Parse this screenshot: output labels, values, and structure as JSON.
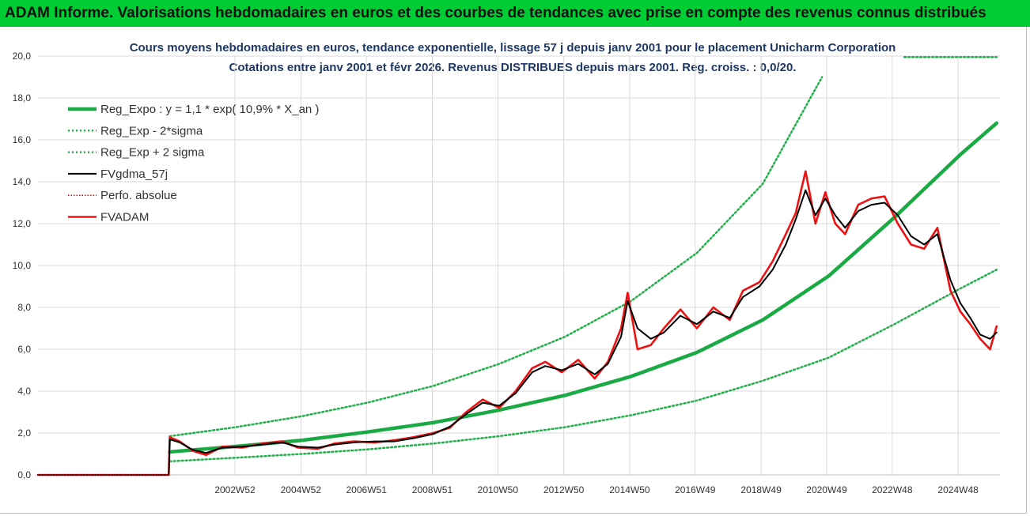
{
  "header": {
    "title": "ADAM Informe. Valorisations hebdomadaires en euros et des courbes de tendances avec prise en compte des revenus connus distribués"
  },
  "colors": {
    "header_bg": "#00cc33",
    "reg_expo": "#1aaa44",
    "sigma": "#22b04a",
    "fvgdma": "#000000",
    "perfo": "#dd0000",
    "fvadam": "#ee1111",
    "grid": "#d9d9d9"
  },
  "chart_data": {
    "type": "line",
    "title": "Cours moyens hebdomadaires en euros, tendance exponentielle, lissage 57 j depuis janv 2001 pour le placement Unicharm Corporation",
    "subtitle": "Cotations entre janv 2001 et févr 2026. Revenus DISTRIBUES depuis mars 2001. Reg. croiss. : 0,0/20.",
    "xlabel": "",
    "ylabel": "",
    "ylim": [
      0,
      20
    ],
    "xlim": [
      1997.0,
      2026.2
    ],
    "grid": true,
    "legend_position": "top-left",
    "yticks": [
      "0,0",
      "2,0",
      "4,0",
      "6,0",
      "8,0",
      "10,0",
      "12,0",
      "14,0",
      "16,0",
      "18,0",
      "20,0"
    ],
    "xticks": [
      {
        "label": "2002W52",
        "x": 2002.98
      },
      {
        "label": "2004W52",
        "x": 2004.98
      },
      {
        "label": "2006W51",
        "x": 2006.97
      },
      {
        "label": "2008W51",
        "x": 2008.97
      },
      {
        "label": "2010W50",
        "x": 2010.96
      },
      {
        "label": "2012W50",
        "x": 2012.96
      },
      {
        "label": "2014W50",
        "x": 2014.96
      },
      {
        "label": "2016W49",
        "x": 2016.95
      },
      {
        "label": "2018W49",
        "x": 2018.95
      },
      {
        "label": "2020W49",
        "x": 2020.94
      },
      {
        "label": "2022W48",
        "x": 2022.93
      },
      {
        "label": "2024W48",
        "x": 2024.93
      }
    ],
    "series": [
      {
        "name": "Reg_Expo : y = 1,1 * exp( 10,9% *  X_an )",
        "key": "reg_expo",
        "x": [
          2001.0,
          2003.0,
          2005.0,
          2007.0,
          2009.0,
          2011.0,
          2013.0,
          2015.0,
          2017.0,
          2019.0,
          2021.0,
          2023.0,
          2025.0,
          2026.1
        ],
        "values": [
          1.1,
          1.36,
          1.65,
          2.05,
          2.5,
          3.1,
          3.8,
          4.7,
          5.85,
          7.4,
          9.5,
          12.3,
          15.3,
          16.8
        ]
      },
      {
        "name": "Reg_Exp - 2*sigma",
        "key": "minus2sigma",
        "x": [
          2001.0,
          2003.0,
          2005.0,
          2007.0,
          2009.0,
          2011.0,
          2013.0,
          2015.0,
          2017.0,
          2019.0,
          2021.0,
          2023.0,
          2025.0,
          2026.1
        ],
        "values": [
          0.65,
          0.82,
          1.0,
          1.22,
          1.5,
          1.85,
          2.28,
          2.85,
          3.55,
          4.5,
          5.6,
          7.2,
          8.9,
          9.8
        ]
      },
      {
        "name": "Reg_Exp + 2 sigma",
        "key": "plus2sigma",
        "x": [
          2001.0,
          2003.0,
          2005.0,
          2007.0,
          2009.0,
          2011.0,
          2013.0,
          2015.0,
          2017.0,
          2019.0,
          2020.8
        ],
        "values": [
          1.85,
          2.28,
          2.8,
          3.45,
          4.25,
          5.3,
          6.6,
          8.3,
          10.6,
          13.9,
          19.0
        ],
        "x2": [
          2023.3,
          2026.1
        ],
        "values2": [
          19.95,
          19.95
        ]
      },
      {
        "name": "FVgdma_57j",
        "key": "fvgdma",
        "x": [
          1997.0,
          2000.97,
          2001.0,
          2001.3,
          2001.7,
          2002.1,
          2002.6,
          2003.2,
          2003.8,
          2004.4,
          2004.9,
          2005.5,
          2006.0,
          2006.6,
          2007.2,
          2007.8,
          2008.4,
          2009.0,
          2009.5,
          2010.0,
          2010.5,
          2011.0,
          2011.5,
          2012.0,
          2012.4,
          2012.9,
          2013.4,
          2013.9,
          2014.3,
          2014.7,
          2014.9,
          2015.2,
          2015.6,
          2016.0,
          2016.5,
          2017.0,
          2017.5,
          2018.0,
          2018.4,
          2018.9,
          2019.3,
          2019.7,
          2020.0,
          2020.3,
          2020.6,
          2020.9,
          2021.2,
          2021.5,
          2021.9,
          2022.3,
          2022.7,
          2023.1,
          2023.5,
          2023.9,
          2024.3,
          2024.7,
          2025.0,
          2025.3,
          2025.6,
          2025.9,
          2026.1
        ],
        "values": [
          0.0,
          0.0,
          1.7,
          1.55,
          1.2,
          1.05,
          1.3,
          1.35,
          1.45,
          1.55,
          1.35,
          1.3,
          1.45,
          1.55,
          1.6,
          1.6,
          1.75,
          1.95,
          2.3,
          2.9,
          3.45,
          3.3,
          3.9,
          4.9,
          5.2,
          5.0,
          5.3,
          4.8,
          5.3,
          6.6,
          8.3,
          7.0,
          6.5,
          6.8,
          7.6,
          7.2,
          7.8,
          7.5,
          8.5,
          9.0,
          9.8,
          11.0,
          12.2,
          13.6,
          12.4,
          13.2,
          12.4,
          11.8,
          12.6,
          12.9,
          13.0,
          12.4,
          11.4,
          11.0,
          11.5,
          9.3,
          8.2,
          7.5,
          6.7,
          6.5,
          6.8
        ]
      },
      {
        "name": "Perfo. absolue",
        "key": "perfo",
        "x": [
          1997.0,
          2000.97
        ],
        "values": [
          0.0,
          0.0
        ]
      },
      {
        "name": "FVADAM",
        "key": "fvadam",
        "x": [
          1997.0,
          2000.97,
          2001.0,
          2001.3,
          2001.7,
          2002.1,
          2002.6,
          2003.2,
          2003.8,
          2004.4,
          2004.9,
          2005.5,
          2006.0,
          2006.6,
          2007.2,
          2007.8,
          2008.4,
          2009.0,
          2009.5,
          2010.0,
          2010.5,
          2011.0,
          2011.5,
          2012.0,
          2012.4,
          2012.9,
          2013.4,
          2013.9,
          2014.3,
          2014.7,
          2014.9,
          2015.2,
          2015.6,
          2016.0,
          2016.5,
          2017.0,
          2017.5,
          2018.0,
          2018.4,
          2018.9,
          2019.3,
          2019.7,
          2020.0,
          2020.3,
          2020.6,
          2020.9,
          2021.2,
          2021.5,
          2021.9,
          2022.3,
          2022.7,
          2023.1,
          2023.5,
          2023.9,
          2024.3,
          2024.7,
          2025.0,
          2025.3,
          2025.6,
          2025.9,
          2026.1
        ],
        "values": [
          0.0,
          0.0,
          1.8,
          1.6,
          1.15,
          0.95,
          1.35,
          1.3,
          1.5,
          1.6,
          1.3,
          1.25,
          1.5,
          1.6,
          1.55,
          1.65,
          1.8,
          2.0,
          2.25,
          3.0,
          3.6,
          3.2,
          4.0,
          5.1,
          5.4,
          4.9,
          5.5,
          4.6,
          5.4,
          7.0,
          8.7,
          6.0,
          6.2,
          7.0,
          7.9,
          7.0,
          8.0,
          7.4,
          8.8,
          9.2,
          10.2,
          11.5,
          12.5,
          14.5,
          12.0,
          13.5,
          12.0,
          11.5,
          12.9,
          13.2,
          13.3,
          12.0,
          11.0,
          10.8,
          11.8,
          8.8,
          7.8,
          7.2,
          6.5,
          6.0,
          7.1
        ]
      }
    ]
  }
}
